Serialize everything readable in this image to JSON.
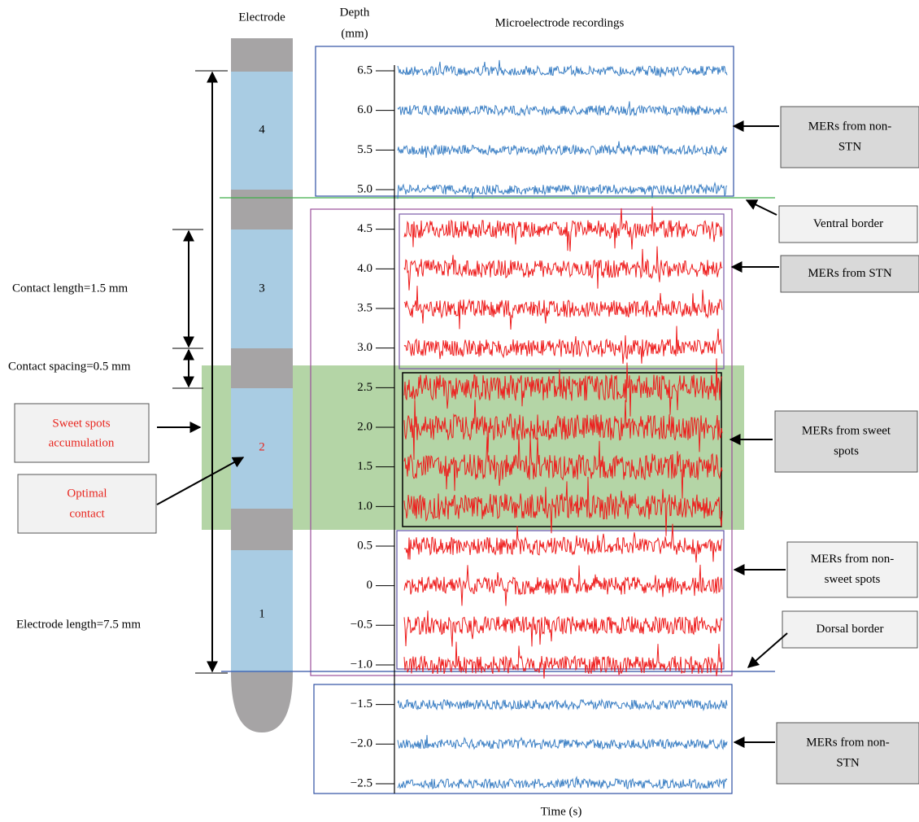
{
  "header": {
    "electrode": "Electrode",
    "depth_label": [
      "Depth",
      "(mm)"
    ],
    "title": "Microelectrode recordings",
    "x_label": "Time (s)"
  },
  "contacts": [
    "4",
    "3",
    "2",
    "1"
  ],
  "depth_ticks": [
    6.5,
    {
      "value": 6,
      "label": "6.0"
    },
    5.5,
    {
      "value": 5,
      "label": "5.0"
    },
    4.5,
    {
      "value": 4,
      "label": "4.0"
    },
    3.5,
    {
      "value": 3,
      "label": "3.0"
    },
    2.5,
    {
      "value": 2,
      "label": "2.0"
    },
    1.5,
    {
      "value": 1,
      "label": "1.0"
    },
    0.5,
    0,
    {
      "value": -0.5,
      "label": "−0.5"
    },
    {
      "value": -1,
      "label": "−1.0"
    },
    {
      "value": -1.5,
      "label": "−1.5"
    },
    {
      "value": -2,
      "label": "−2.0"
    },
    {
      "value": -2.5,
      "label": "−2.5"
    }
  ],
  "left_labels": {
    "contact_length": "Contact length=1.5 mm",
    "contact_spacing": "Contact spacing=0.5 mm",
    "sweet_spots": [
      "Sweet spots",
      "accumulation"
    ],
    "optimal": [
      "Optimal",
      "contact"
    ],
    "electrode_length": "Electrode length=7.5 mm"
  },
  "callouts": [
    [
      "MERs from non-",
      "STN"
    ],
    [
      "Ventral border"
    ],
    [
      "MERs from STN"
    ],
    [
      "MERs from sweet",
      "spots"
    ],
    [
      "MERs from non-",
      "sweet spots"
    ],
    [
      "Dorsal border"
    ],
    [
      "MERs from non-",
      "STN"
    ]
  ]
}
